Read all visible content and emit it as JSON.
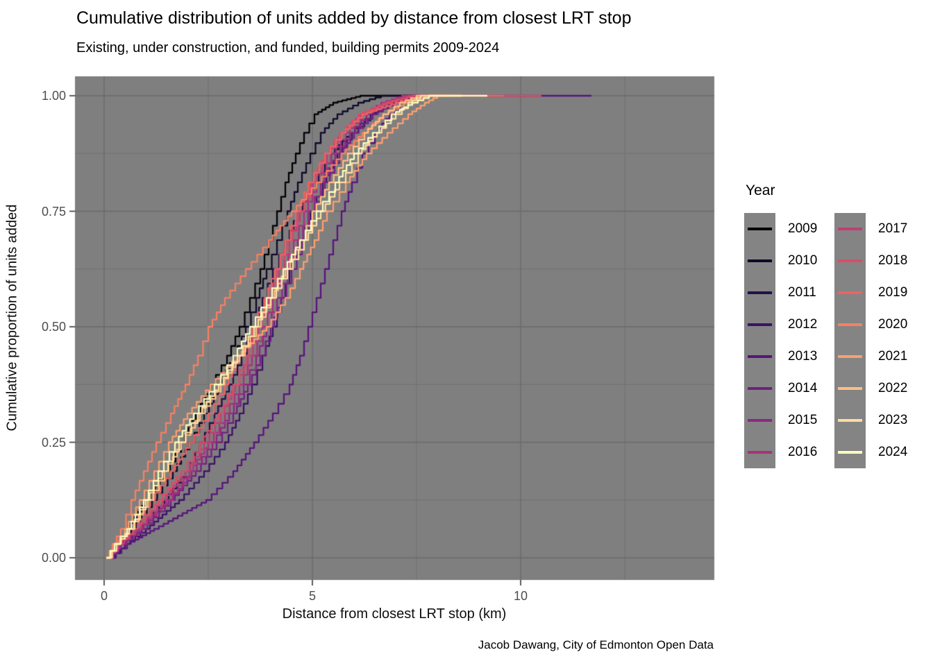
{
  "header": {
    "title": "Cumulative distribution of units added by distance from closest LRT stop",
    "subtitle": "Existing, under construction, and funded, building permits 2009-2024"
  },
  "caption": "Jacob Dawang, City of Edmonton Open Data",
  "legend": {
    "title": "Year",
    "position": "right",
    "columns": [
      [
        "2009",
        "2010",
        "2011",
        "2012",
        "2013",
        "2014",
        "2015",
        "2016"
      ],
      [
        "2017",
        "2018",
        "2019",
        "2020",
        "2021",
        "2022",
        "2023",
        "2024"
      ]
    ]
  },
  "colors": {
    "panel_background": "#7f7f7f",
    "grid_major": "#6a6a6a",
    "grid_minor": "#717171",
    "tick_mark": "#333333",
    "axis_text": "#4d4d4d",
    "legend_key_fill": "#848484",
    "text": "#000000"
  },
  "chart_data": {
    "type": "line",
    "subtype": "ecdf-step",
    "title": "Cumulative distribution of units added by distance from closest LRT stop",
    "subtitle": "Existing, under construction, and funded, building permits 2009-2024",
    "xlabel": "Distance from closest LRT stop (km)",
    "ylabel": "Cumulative proportion of units added",
    "caption": "Jacob Dawang, City of Edmonton Open Data",
    "legend_title": "Year",
    "xlim": [
      -0.7,
      14.65
    ],
    "ylim": [
      -0.047,
      1.042
    ],
    "x_ticks": [
      {
        "label": "0",
        "km": 0
      },
      {
        "label": "5",
        "km": 5
      },
      {
        "label": "10",
        "km": 10
      }
    ],
    "y_ticks": [
      {
        "label": "0.00",
        "p": 0
      },
      {
        "label": "0.25",
        "p": 0.25
      },
      {
        "label": "0.50",
        "p": 0.5
      },
      {
        "label": "0.75",
        "p": 0.75
      },
      {
        "label": "1.00",
        "p": 1.0
      }
    ],
    "x_minor_km": [
      2.5,
      7.5,
      12.5
    ],
    "y_minor_p": [
      0.125,
      0.375,
      0.625,
      0.875
    ],
    "grid": true,
    "props_grid": [
      0,
      0.03,
      0.0625,
      0.125,
      0.1875,
      0.25,
      0.3125,
      0.375,
      0.4375,
      0.5,
      0.5625,
      0.625,
      0.6875,
      0.75,
      0.8125,
      0.875,
      0.92,
      0.96,
      0.985,
      1.0
    ],
    "series": [
      {
        "name": "2009",
        "color": "#000004",
        "km": [
          0.1,
          0.3,
          0.55,
          1.0,
          1.45,
          1.85,
          2.2,
          2.55,
          2.95,
          3.25,
          3.5,
          3.75,
          3.95,
          4.15,
          4.35,
          4.6,
          4.8,
          5.05,
          5.5,
          6.15
        ],
        "end_km": 7.45
      },
      {
        "name": "2010",
        "color": "#0f0928",
        "km": [
          0.1,
          0.35,
          0.65,
          1.15,
          1.65,
          2.05,
          2.4,
          2.75,
          3.1,
          3.4,
          3.65,
          3.9,
          4.15,
          4.4,
          4.65,
          4.95,
          5.2,
          5.6,
          6.1,
          6.65
        ],
        "end_km": 7.7
      },
      {
        "name": "2011",
        "color": "#211149",
        "km": [
          0.1,
          0.4,
          0.8,
          1.45,
          1.95,
          2.3,
          2.65,
          3.0,
          3.3,
          3.55,
          3.8,
          4.05,
          4.35,
          4.65,
          5.0,
          5.45,
          5.9,
          6.4,
          6.9,
          7.3
        ],
        "end_km": 7.9
      },
      {
        "name": "2012",
        "color": "#3c1167",
        "km": [
          0.15,
          0.5,
          1.0,
          1.8,
          2.4,
          2.9,
          3.25,
          3.55,
          3.8,
          4.05,
          4.25,
          4.45,
          4.7,
          4.95,
          5.25,
          5.6,
          5.95,
          6.4,
          6.9,
          7.6
        ],
        "end_km": 8.1
      },
      {
        "name": "2013",
        "color": "#57147c",
        "km": [
          0.15,
          0.55,
          1.2,
          2.45,
          3.1,
          3.6,
          4.05,
          4.45,
          4.7,
          4.9,
          5.1,
          5.3,
          5.5,
          5.7,
          5.95,
          6.2,
          6.5,
          6.85,
          7.1,
          7.2
        ],
        "end_km": 11.7
      },
      {
        "name": "2014",
        "color": "#722080",
        "km": [
          0.1,
          0.4,
          0.9,
          1.6,
          2.2,
          2.7,
          3.1,
          3.45,
          3.75,
          4.0,
          4.25,
          4.5,
          4.75,
          5.0,
          5.3,
          5.65,
          6.0,
          6.45,
          6.95,
          7.5
        ],
        "end_km": 7.9
      },
      {
        "name": "2015",
        "color": "#8c2980",
        "km": [
          0.1,
          0.4,
          0.85,
          1.55,
          2.1,
          2.6,
          3.0,
          3.35,
          3.65,
          3.9,
          4.15,
          4.4,
          4.65,
          4.9,
          5.2,
          5.55,
          5.9,
          6.3,
          6.8,
          7.4
        ],
        "end_km": 7.75
      },
      {
        "name": "2016",
        "color": "#a8327b",
        "km": [
          0.1,
          0.35,
          0.8,
          1.5,
          2.05,
          2.5,
          2.9,
          3.25,
          3.55,
          3.8,
          4.05,
          4.3,
          4.55,
          4.8,
          5.1,
          5.45,
          5.8,
          6.2,
          6.65,
          7.15
        ],
        "end_km": 7.6
      },
      {
        "name": "2017",
        "color": "#c33d73",
        "km": [
          0.1,
          0.35,
          0.75,
          1.4,
          1.95,
          2.4,
          2.8,
          3.15,
          3.45,
          3.7,
          3.95,
          4.2,
          4.45,
          4.7,
          5.0,
          5.35,
          5.7,
          6.15,
          6.7,
          7.3
        ],
        "end_km": 8.3
      },
      {
        "name": "2018",
        "color": "#dc4c68",
        "km": [
          0.08,
          0.3,
          0.7,
          1.3,
          1.85,
          2.3,
          2.75,
          3.1,
          3.4,
          3.65,
          3.9,
          4.15,
          4.4,
          4.65,
          4.95,
          5.3,
          5.65,
          6.1,
          6.8,
          7.4
        ],
        "end_km": 10.5
      },
      {
        "name": "2019",
        "color": "#ed6363",
        "km": [
          0.05,
          0.25,
          0.6,
          1.1,
          1.6,
          2.05,
          2.5,
          2.9,
          3.25,
          3.55,
          3.85,
          4.1,
          4.35,
          4.6,
          4.9,
          5.3,
          5.7,
          6.2,
          7.0,
          7.6
        ],
        "end_km": 9.6
      },
      {
        "name": "2020",
        "color": "#f88062",
        "km": [
          0.05,
          0.2,
          0.4,
          0.65,
          0.95,
          1.25,
          1.6,
          1.95,
          2.25,
          2.5,
          2.9,
          3.4,
          3.95,
          4.5,
          5.1,
          5.7,
          6.2,
          6.7,
          7.2,
          7.8
        ],
        "end_km": 8.2
      },
      {
        "name": "2021",
        "color": "#fc9f70",
        "km": [
          0.05,
          0.25,
          0.5,
          0.85,
          1.2,
          1.55,
          2.0,
          2.55,
          3.2,
          3.9,
          4.35,
          4.7,
          5.05,
          5.35,
          5.8,
          6.3,
          6.8,
          7.3,
          7.7,
          8.0
        ],
        "end_km": 8.55
      },
      {
        "name": "2022",
        "color": "#febe84",
        "km": [
          0.08,
          0.3,
          0.6,
          1.05,
          1.45,
          1.85,
          2.3,
          2.8,
          3.25,
          3.65,
          4.0,
          4.35,
          4.7,
          5.0,
          5.4,
          5.85,
          6.25,
          6.7,
          7.1,
          7.5
        ],
        "end_km": 8.0
      },
      {
        "name": "2023",
        "color": "#fddda1",
        "km": [
          0.08,
          0.3,
          0.6,
          1.0,
          1.4,
          1.8,
          2.25,
          2.75,
          3.2,
          3.6,
          4.0,
          4.4,
          4.8,
          5.2,
          5.65,
          6.1,
          6.55,
          7.0,
          7.3,
          7.6
        ],
        "end_km": 8.6
      },
      {
        "name": "2024",
        "color": "#fcfdbf",
        "km": [
          0.05,
          0.25,
          0.55,
          0.95,
          1.3,
          1.7,
          2.15,
          2.65,
          3.1,
          3.5,
          3.9,
          4.3,
          4.7,
          5.1,
          5.55,
          6.0,
          6.45,
          6.9,
          7.4,
          7.8
        ],
        "end_km": 9.2
      }
    ]
  }
}
